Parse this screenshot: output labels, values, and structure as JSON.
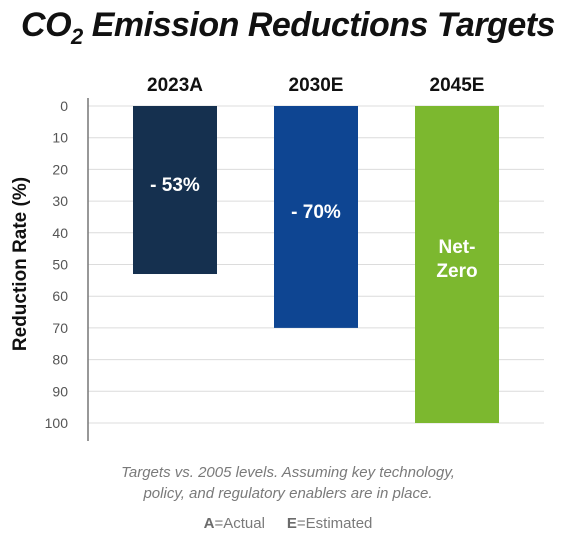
{
  "title": {
    "main_a": "CO",
    "main_sub": "2",
    "main_b": " Emission Reductions Targets"
  },
  "chart_data": {
    "type": "bar",
    "categories": [
      "2023A",
      "2030E",
      "2045E"
    ],
    "values": [
      53,
      70,
      100
    ],
    "bar_labels": [
      "- 53%",
      "- 70%",
      "Net-\nZero"
    ],
    "colors": [
      "#15304f",
      "#0e4592",
      "#7cb82f"
    ],
    "ylabel": "Reduction Rate (%)",
    "ylim": [
      0,
      100
    ],
    "y_inverted": true,
    "yticks": [
      0,
      10,
      20,
      30,
      40,
      50,
      60,
      70,
      80,
      90,
      100
    ],
    "grid": true
  },
  "footnote": {
    "line1": "Targets vs. 2005 levels. Assuming key technology,",
    "line2": "policy, and regulatory enablers are in place."
  },
  "legend": {
    "a_key": "A",
    "a_text": "=Actual",
    "e_key": "E",
    "e_text": "=Estimated"
  }
}
